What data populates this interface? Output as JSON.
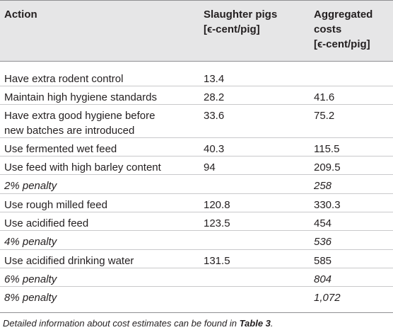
{
  "table": {
    "headers": {
      "action": "Action",
      "slaughter": "Slaughter pigs\n[ϵ-cent/pig]",
      "aggregated": "Aggregated\ncosts\n[ϵ-cent/pig]"
    },
    "rows": [
      {
        "action": "Have extra rodent control",
        "slaughter": "13.4",
        "aggregated": "",
        "italic": false
      },
      {
        "action": "Maintain high hygiene standards",
        "slaughter": "28.2",
        "aggregated": "41.6",
        "italic": false
      },
      {
        "action": "Have extra good hygiene before\nnew batches are introduced",
        "slaughter": "33.6",
        "aggregated": "75.2",
        "italic": false
      },
      {
        "action": "Use fermented wet feed",
        "slaughter": "40.3",
        "aggregated": "115.5",
        "italic": false
      },
      {
        "action": "Use feed with high barley content",
        "slaughter": "94",
        "aggregated": "209.5",
        "italic": false
      },
      {
        "action": "2% penalty",
        "slaughter": "",
        "aggregated": "258",
        "italic": true
      },
      {
        "action": "Use rough milled feed",
        "slaughter": "120.8",
        "aggregated": "330.3",
        "italic": false
      },
      {
        "action": "Use acidified feed",
        "slaughter": "123.5",
        "aggregated": "454",
        "italic": false
      },
      {
        "action": "4% penalty",
        "slaughter": "",
        "aggregated": "536",
        "italic": true
      },
      {
        "action": "Use acidified drinking water",
        "slaughter": "131.5",
        "aggregated": "585",
        "italic": false
      },
      {
        "action": "6% penalty",
        "slaughter": "",
        "aggregated": "804",
        "italic": true
      },
      {
        "action": "8% penalty",
        "slaughter": "",
        "aggregated": "1,072",
        "italic": true
      }
    ]
  },
  "footnote": {
    "text": "Detailed information about cost estimates can be found in ",
    "ref": "Table 3",
    "end": "."
  }
}
